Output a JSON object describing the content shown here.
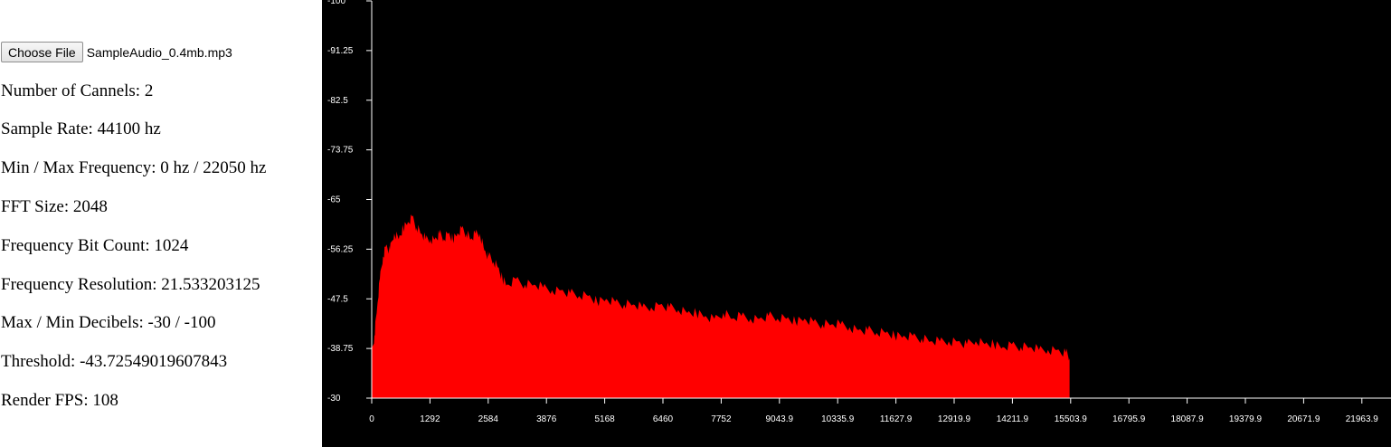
{
  "file_input": {
    "button_label": "Choose File",
    "file_name": "SampleAudio_0.4mb.mp3"
  },
  "info": {
    "channels": "Number of Cannels: 2",
    "sample_rate": "Sample Rate: 44100 hz",
    "frequency_range": "Min / Max Frequency: 0 hz / 22050 hz",
    "fft_size": "FFT Size: 2048",
    "bit_count": "Frequency Bit Count: 1024",
    "resolution": "Frequency Resolution: 21.533203125",
    "decibels": "Max / Min Decibels: -30 / -100",
    "threshold": "Threshold: -43.72549019607843",
    "fps": "Render FPS: 108"
  },
  "colors": {
    "background": "#000000",
    "spectrum_fill": "#ff0000",
    "axis": "#ffffff"
  },
  "chart_data": {
    "type": "area",
    "xlim": [
      0,
      22609.86
    ],
    "ylim": [
      -30,
      -100
    ],
    "x_tick_labels": [
      "0",
      "1292",
      "2584",
      "3876",
      "5168",
      "6460",
      "7752",
      "9043.9",
      "10335.9",
      "11627.9",
      "12919.9",
      "14211.9",
      "15503.9",
      "16795.9",
      "18087.9",
      "19379.9",
      "20671.9",
      "21963.9"
    ],
    "x_tick_values": [
      0,
      1292,
      2584,
      3876,
      5168,
      6460,
      7752,
      9043.9,
      10335.9,
      11627.9,
      12919.9,
      14211.9,
      15503.9,
      16795.9,
      18087.9,
      19379.9,
      20671.9,
      21963.9
    ],
    "y_tick_labels": [
      "-100",
      "-91.25",
      "-82.5",
      "-73.75",
      "-65",
      "-56.25",
      "-47.5",
      "-38.75",
      "-30"
    ],
    "y_tick_values": [
      -100,
      -91.25,
      -82.5,
      -73.75,
      -65,
      -56.25,
      -47.5,
      -38.75,
      -30
    ],
    "series": [
      {
        "x": [
          0,
          60,
          120,
          180,
          250,
          320,
          400,
          500,
          600,
          700,
          800,
          900,
          1000,
          1100,
          1200,
          1300,
          1400,
          1500,
          1600,
          1700,
          1800,
          1900,
          2000,
          2100,
          2200,
          2300,
          2400,
          2500,
          2600,
          2700,
          2800,
          2900,
          3000,
          3200,
          3400,
          3600,
          3800,
          4000,
          4200,
          4400,
          4600,
          4800,
          5000,
          5200,
          5400,
          5600,
          5800,
          6000,
          6200,
          6400,
          6600,
          6800,
          7000,
          7200,
          7400,
          7600,
          7800,
          8000,
          8200,
          8400,
          8600,
          8800,
          9000,
          9200,
          9400,
          9600,
          9800,
          10000,
          10200,
          10400,
          10600,
          10800,
          11000,
          11200,
          11400,
          11600,
          11800,
          12000,
          12200,
          12400,
          12600,
          12800,
          13000,
          13200,
          13400,
          13600,
          13800,
          14000,
          14200,
          14400,
          14600,
          14800,
          15000,
          15200,
          15400,
          15480
        ],
        "values": [
          -38,
          -41,
          -46,
          -51,
          -55,
          -57,
          -56,
          -59,
          -58,
          -60,
          -61,
          -62,
          -60,
          -59,
          -58,
          -58,
          -58,
          -59,
          -58,
          -59,
          -58,
          -59,
          -60,
          -59,
          -58,
          -59,
          -59,
          -56,
          -55,
          -54,
          -53,
          -51,
          -50,
          -51,
          -50,
          -50,
          -49.5,
          -49,
          -49,
          -48.5,
          -48,
          -48,
          -47,
          -47.5,
          -47,
          -46.5,
          -46.5,
          -46,
          -46,
          -46.5,
          -46,
          -45.5,
          -45,
          -45,
          -44.5,
          -44,
          -45,
          -44,
          -44.5,
          -44,
          -44,
          -44.5,
          -44,
          -44,
          -43.5,
          -44,
          -43.5,
          -43,
          -43,
          -43,
          -42.5,
          -42,
          -42,
          -41.5,
          -41.5,
          -41,
          -41,
          -41,
          -40.5,
          -40,
          -40,
          -40,
          -40,
          -39.5,
          -40,
          -39.5,
          -39.5,
          -39,
          -39.5,
          -39,
          -39,
          -38.5,
          -38.5,
          -38.5,
          -38,
          -37
        ]
      }
    ]
  }
}
